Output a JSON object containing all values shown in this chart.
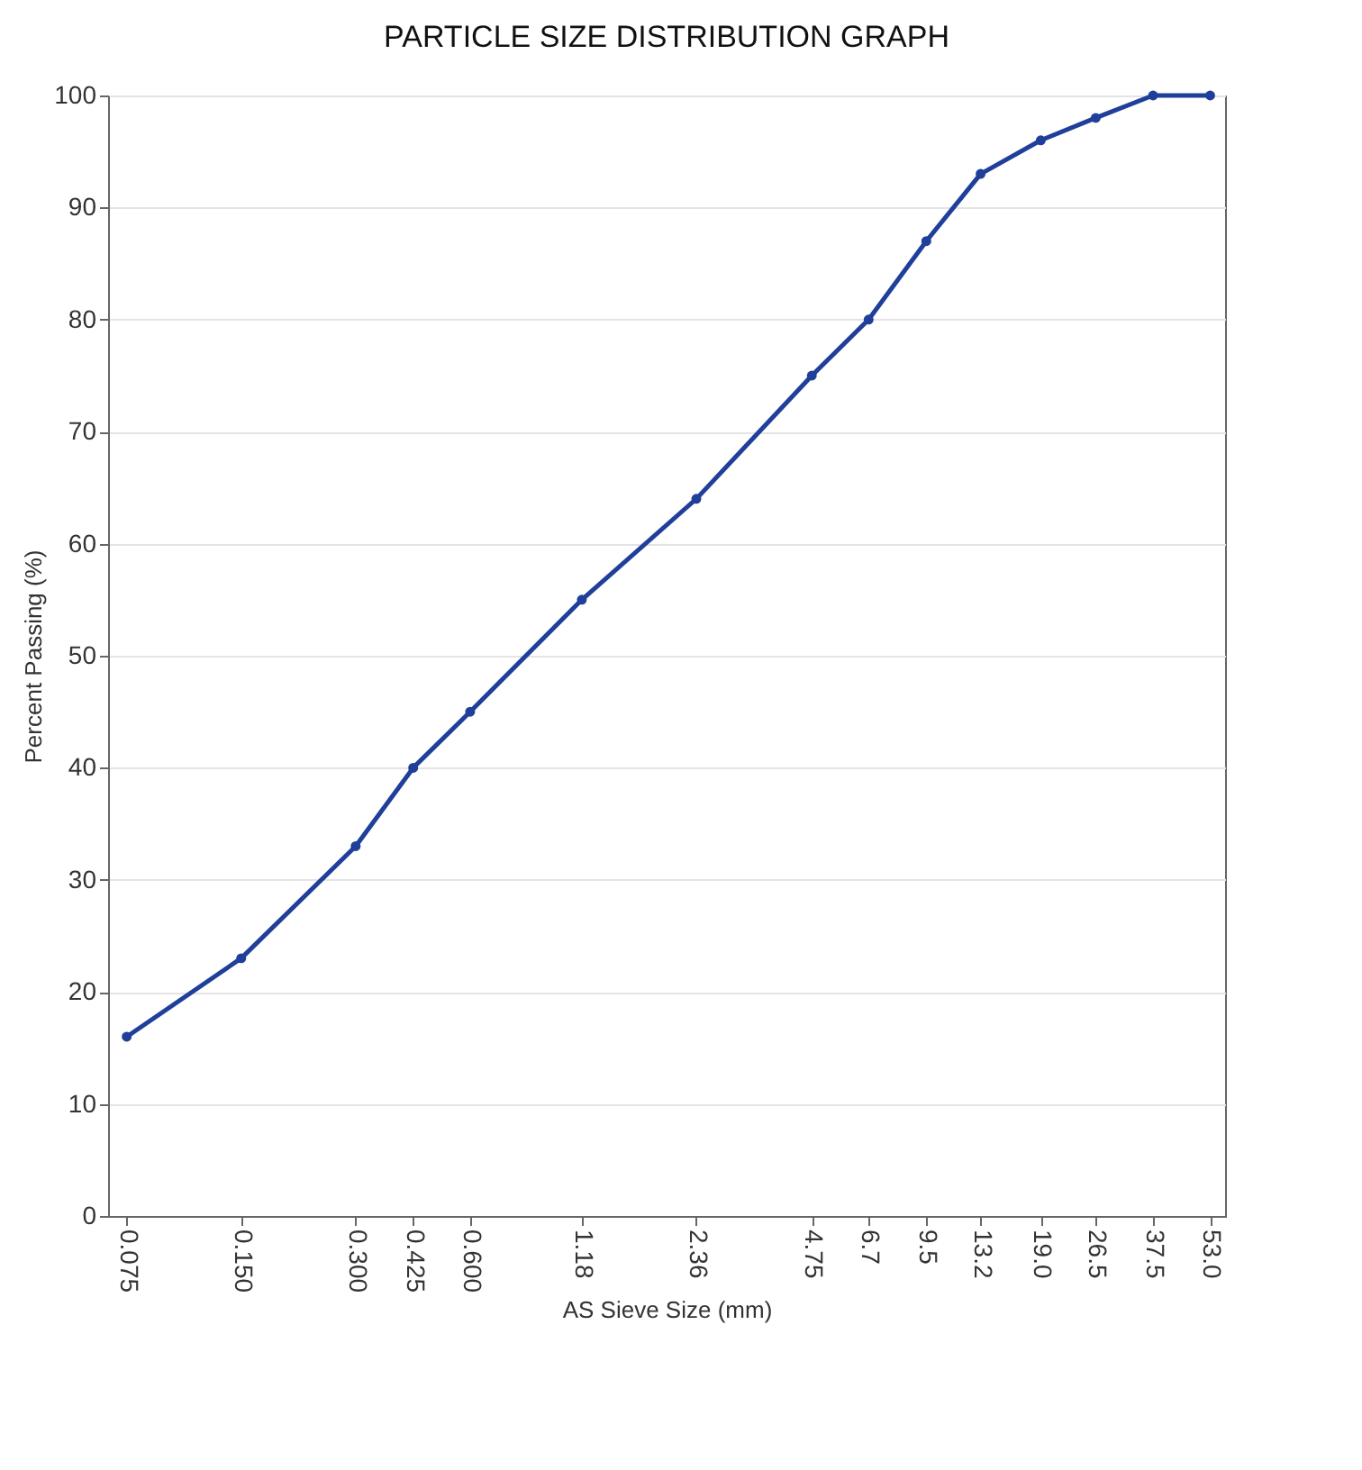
{
  "chart_data": {
    "type": "line",
    "title": "PARTICLE SIZE DISTRIBUTION GRAPH",
    "xlabel": "AS Sieve Size (mm)",
    "ylabel": "Percent Passing (%)",
    "log": "x",
    "x": [
      0.075,
      0.15,
      0.3,
      0.425,
      0.6,
      1.18,
      2.36,
      4.75,
      6.7,
      9.5,
      13.2,
      19,
      26.5,
      37.5,
      53
    ],
    "series": [
      {
        "color": "#1f3f9a",
        "values": [
          16,
          23,
          33,
          40,
          45,
          55,
          64,
          75,
          80,
          87,
          93,
          96,
          98,
          100,
          100
        ]
      }
    ],
    "xlim": [
      0.067,
      58
    ],
    "ylim": [
      0,
      100
    ],
    "yticks": [
      0,
      10,
      20,
      30,
      40,
      50,
      60,
      70,
      80,
      90,
      100
    ],
    "xticks": [
      0.075,
      {
        "value": 0.15,
        "label": "0.150"
      },
      {
        "value": 0.3,
        "label": "0.300"
      },
      0.425,
      {
        "value": 0.6,
        "label": "0.600"
      },
      1.18,
      2.36,
      4.75,
      6.7,
      9.5,
      13.2,
      {
        "value": 19,
        "label": "19.0"
      },
      26.5,
      37.5,
      {
        "value": 53,
        "label": "53.0"
      }
    ],
    "grid": "y",
    "marker": "circle",
    "line_style": "solid",
    "legend": false
  }
}
